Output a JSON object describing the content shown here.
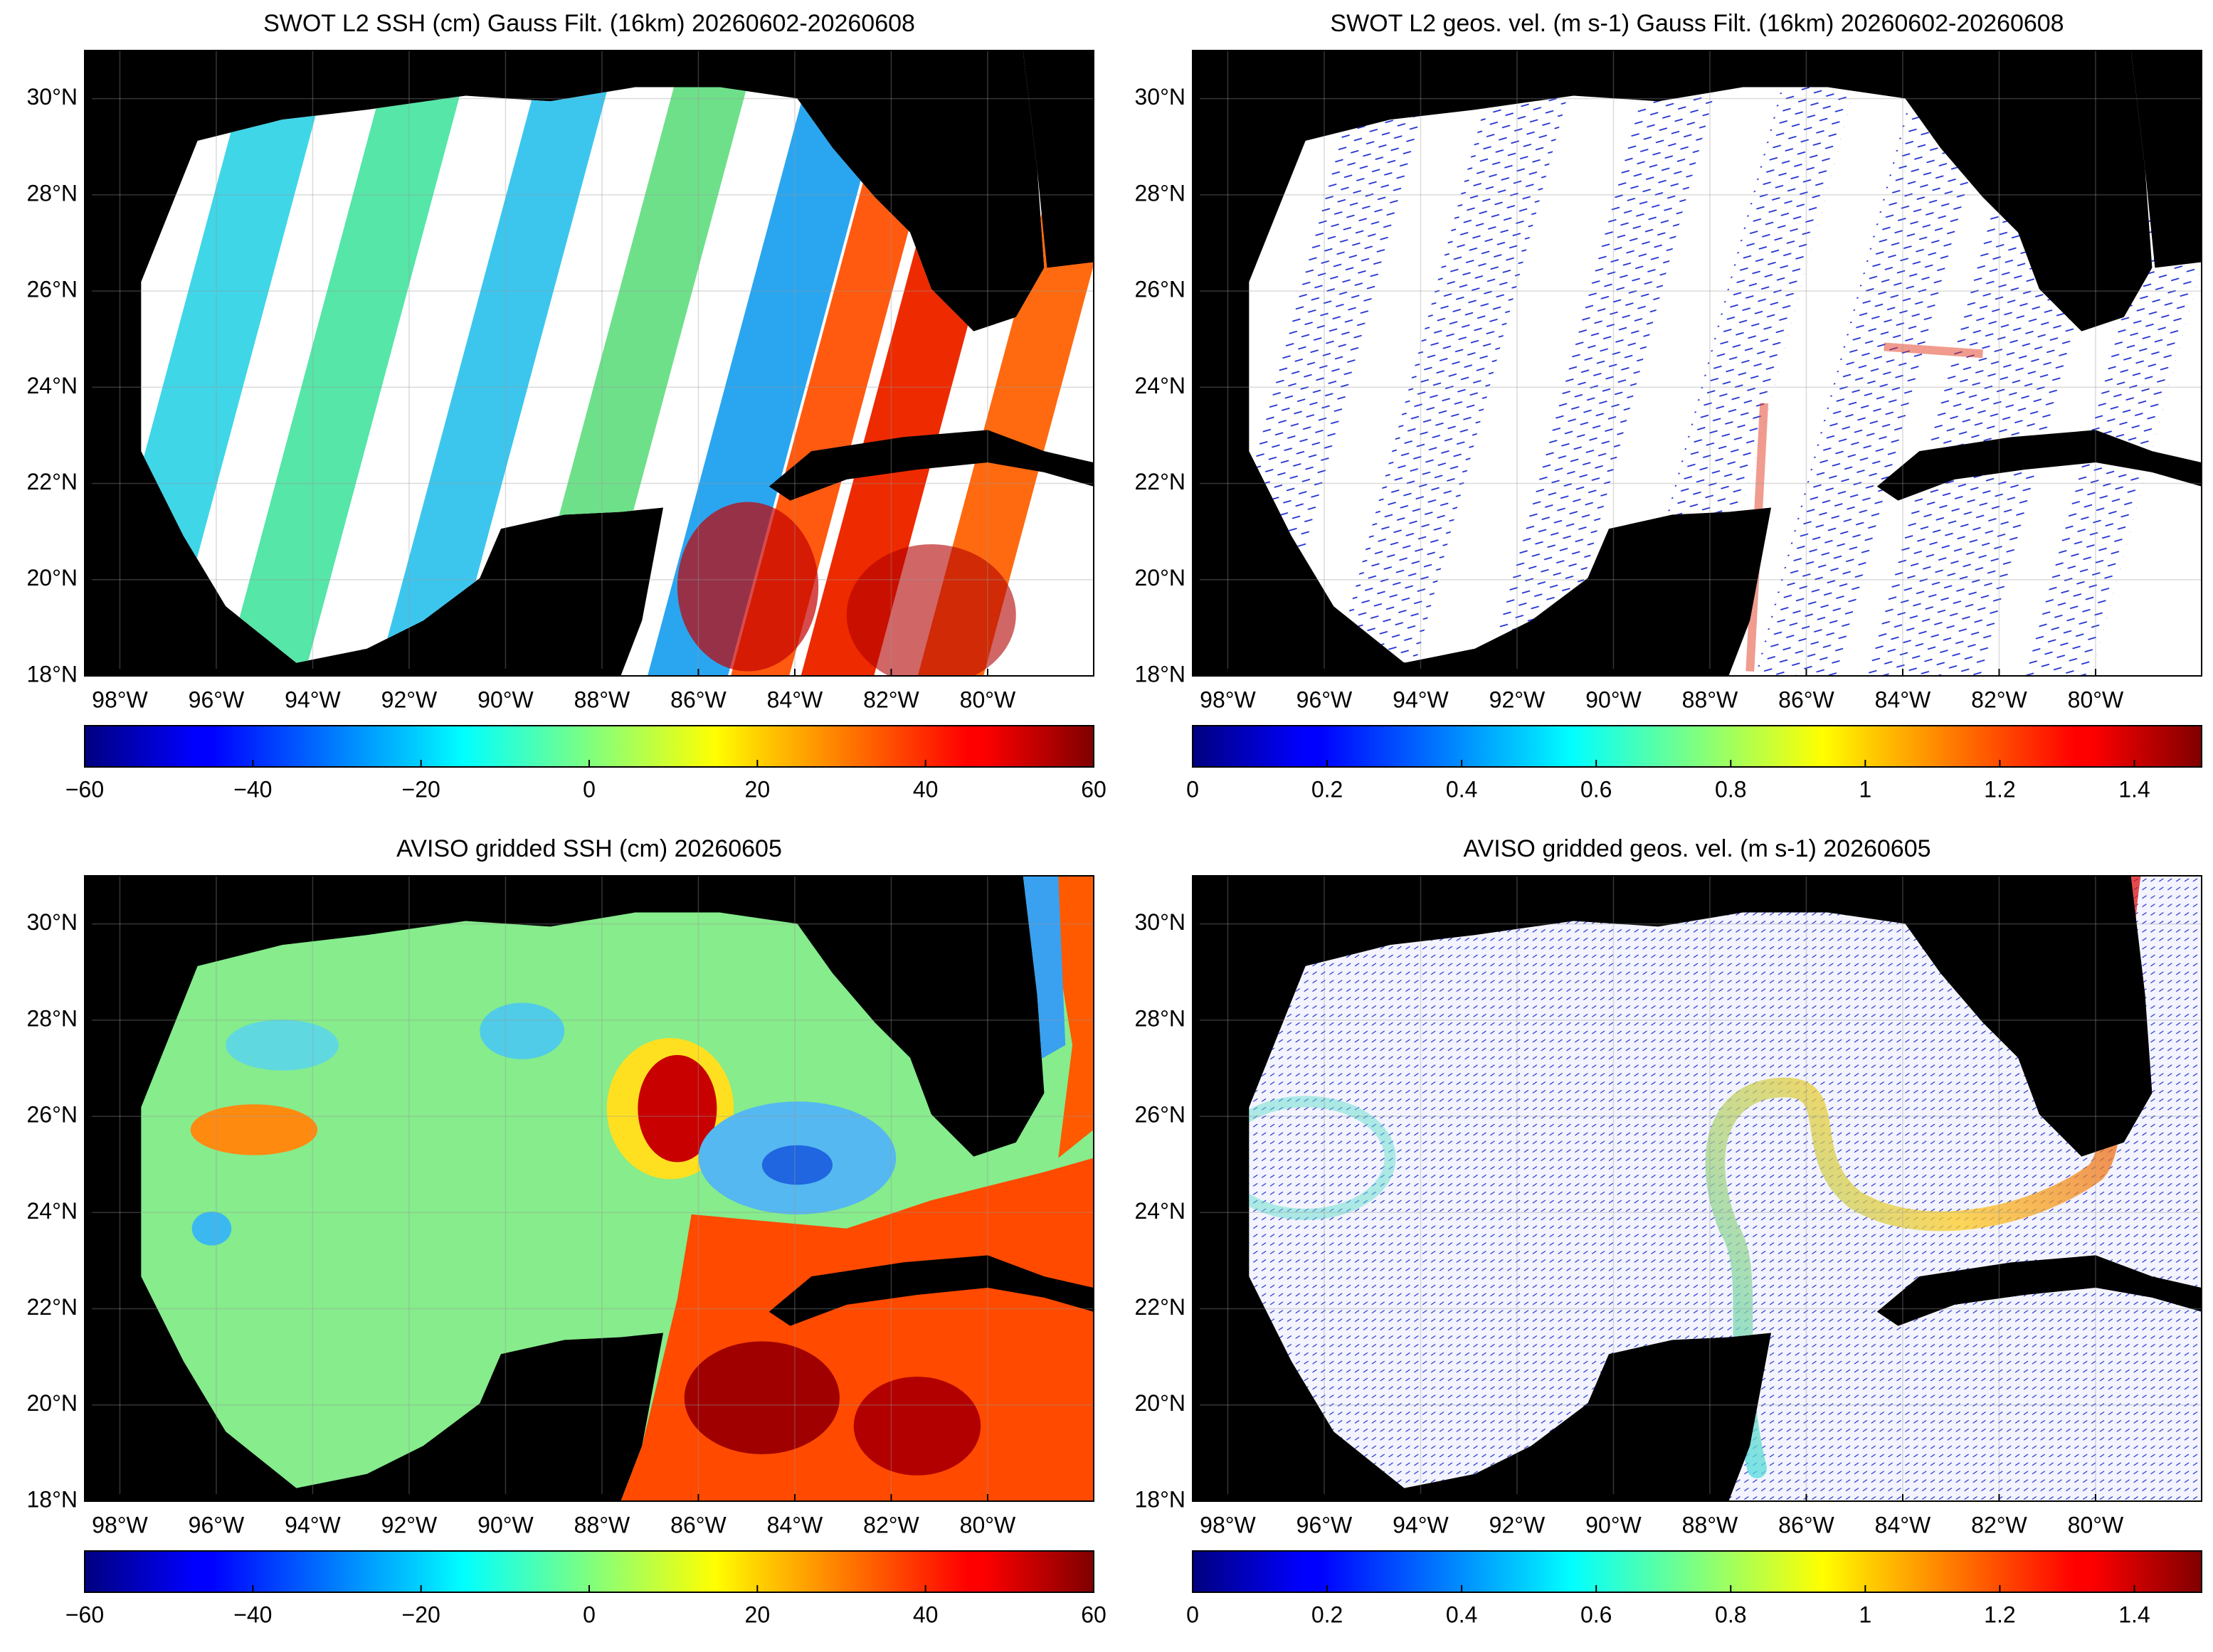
{
  "panels": [
    {
      "type": "map",
      "title": "SWOT L2 SSH (cm) Gauss Filt. (16km) 20260602-20260608",
      "xlim": [
        -98.73,
        -77.8
      ],
      "ylim": [
        18,
        31
      ],
      "grid": true,
      "xticks": [
        {
          "value": -98,
          "label": "98°W"
        },
        {
          "value": -96,
          "label": "96°W"
        },
        {
          "value": -94,
          "label": "94°W"
        },
        {
          "value": -92,
          "label": "92°W"
        },
        {
          "value": -90,
          "label": "90°W"
        },
        {
          "value": -88,
          "label": "88°W"
        },
        {
          "value": -86,
          "label": "86°W"
        },
        {
          "value": -84,
          "label": "84°W"
        },
        {
          "value": -82,
          "label": "82°W"
        },
        {
          "value": -80,
          "label": "80°W"
        }
      ],
      "yticks": [
        {
          "value": 18,
          "label": "18°N"
        },
        {
          "value": 20,
          "label": "20°N"
        },
        {
          "value": 22,
          "label": "22°N"
        },
        {
          "value": 24,
          "label": "24°N"
        },
        {
          "value": 26,
          "label": "26°N"
        },
        {
          "value": 28,
          "label": "28°N"
        },
        {
          "value": 30,
          "label": "30°N"
        }
      ],
      "colorbar": {
        "colormap": "jet",
        "lim": [
          -60,
          60
        ],
        "ticks": [
          {
            "value": -60,
            "label": "−60"
          },
          {
            "value": -40,
            "label": "−40"
          },
          {
            "value": -20,
            "label": "−20"
          },
          0,
          20,
          40,
          60
        ]
      }
    },
    {
      "type": "map",
      "title": "SWOT L2 geos. vel. (m s-1) Gauss Filt. (16km) 20260602-20260608",
      "xlim": [
        -98.73,
        -77.8
      ],
      "ylim": [
        18,
        31
      ],
      "grid": true,
      "xticks": [
        {
          "value": -98,
          "label": "98°W"
        },
        {
          "value": -96,
          "label": "96°W"
        },
        {
          "value": -94,
          "label": "94°W"
        },
        {
          "value": -92,
          "label": "92°W"
        },
        {
          "value": -90,
          "label": "90°W"
        },
        {
          "value": -88,
          "label": "88°W"
        },
        {
          "value": -86,
          "label": "86°W"
        },
        {
          "value": -84,
          "label": "84°W"
        },
        {
          "value": -82,
          "label": "82°W"
        },
        {
          "value": -80,
          "label": "80°W"
        }
      ],
      "yticks": [
        {
          "value": 18,
          "label": "18°N"
        },
        {
          "value": 20,
          "label": "20°N"
        },
        {
          "value": 22,
          "label": "22°N"
        },
        {
          "value": 24,
          "label": "24°N"
        },
        {
          "value": 26,
          "label": "26°N"
        },
        {
          "value": 28,
          "label": "28°N"
        },
        {
          "value": 30,
          "label": "30°N"
        }
      ],
      "colorbar": {
        "colormap": "jet",
        "lim": [
          0,
          1.5
        ],
        "ticks": [
          0,
          0.2,
          0.4,
          0.6,
          0.8,
          1,
          1.2,
          1.4
        ]
      }
    },
    {
      "type": "map",
      "title": "AVISO gridded SSH (cm) 20260605",
      "xlim": [
        -98.73,
        -77.8
      ],
      "ylim": [
        18,
        31
      ],
      "grid": true,
      "xticks": [
        {
          "value": -98,
          "label": "98°W"
        },
        {
          "value": -96,
          "label": "96°W"
        },
        {
          "value": -94,
          "label": "94°W"
        },
        {
          "value": -92,
          "label": "92°W"
        },
        {
          "value": -90,
          "label": "90°W"
        },
        {
          "value": -88,
          "label": "88°W"
        },
        {
          "value": -86,
          "label": "86°W"
        },
        {
          "value": -84,
          "label": "84°W"
        },
        {
          "value": -82,
          "label": "82°W"
        },
        {
          "value": -80,
          "label": "80°W"
        }
      ],
      "yticks": [
        {
          "value": 18,
          "label": "18°N"
        },
        {
          "value": 20,
          "label": "20°N"
        },
        {
          "value": 22,
          "label": "22°N"
        },
        {
          "value": 24,
          "label": "24°N"
        },
        {
          "value": 26,
          "label": "26°N"
        },
        {
          "value": 28,
          "label": "28°N"
        },
        {
          "value": 30,
          "label": "30°N"
        }
      ],
      "colorbar": {
        "colormap": "jet",
        "lim": [
          -60,
          60
        ],
        "ticks": [
          {
            "value": -60,
            "label": "−60"
          },
          {
            "value": -40,
            "label": "−40"
          },
          {
            "value": -20,
            "label": "−20"
          },
          0,
          20,
          40,
          60
        ]
      }
    },
    {
      "type": "map",
      "title": "AVISO gridded geos. vel. (m s-1)  20260605",
      "xlim": [
        -98.73,
        -77.8
      ],
      "ylim": [
        18,
        31
      ],
      "grid": true,
      "xticks": [
        {
          "value": -98,
          "label": "98°W"
        },
        {
          "value": -96,
          "label": "96°W"
        },
        {
          "value": -94,
          "label": "94°W"
        },
        {
          "value": -92,
          "label": "92°W"
        },
        {
          "value": -90,
          "label": "90°W"
        },
        {
          "value": -88,
          "label": "88°W"
        },
        {
          "value": -86,
          "label": "86°W"
        },
        {
          "value": -84,
          "label": "84°W"
        },
        {
          "value": -82,
          "label": "82°W"
        },
        {
          "value": -80,
          "label": "80°W"
        }
      ],
      "yticks": [
        {
          "value": 18,
          "label": "18°N"
        },
        {
          "value": 20,
          "label": "20°N"
        },
        {
          "value": 22,
          "label": "22°N"
        },
        {
          "value": 24,
          "label": "24°N"
        },
        {
          "value": 26,
          "label": "26°N"
        },
        {
          "value": 28,
          "label": "28°N"
        },
        {
          "value": 30,
          "label": "30°N"
        }
      ],
      "colorbar": {
        "colormap": "jet",
        "lim": [
          0,
          1.5
        ],
        "ticks": [
          0,
          0.2,
          0.4,
          0.6,
          0.8,
          1,
          1.2,
          1.4
        ]
      }
    }
  ]
}
